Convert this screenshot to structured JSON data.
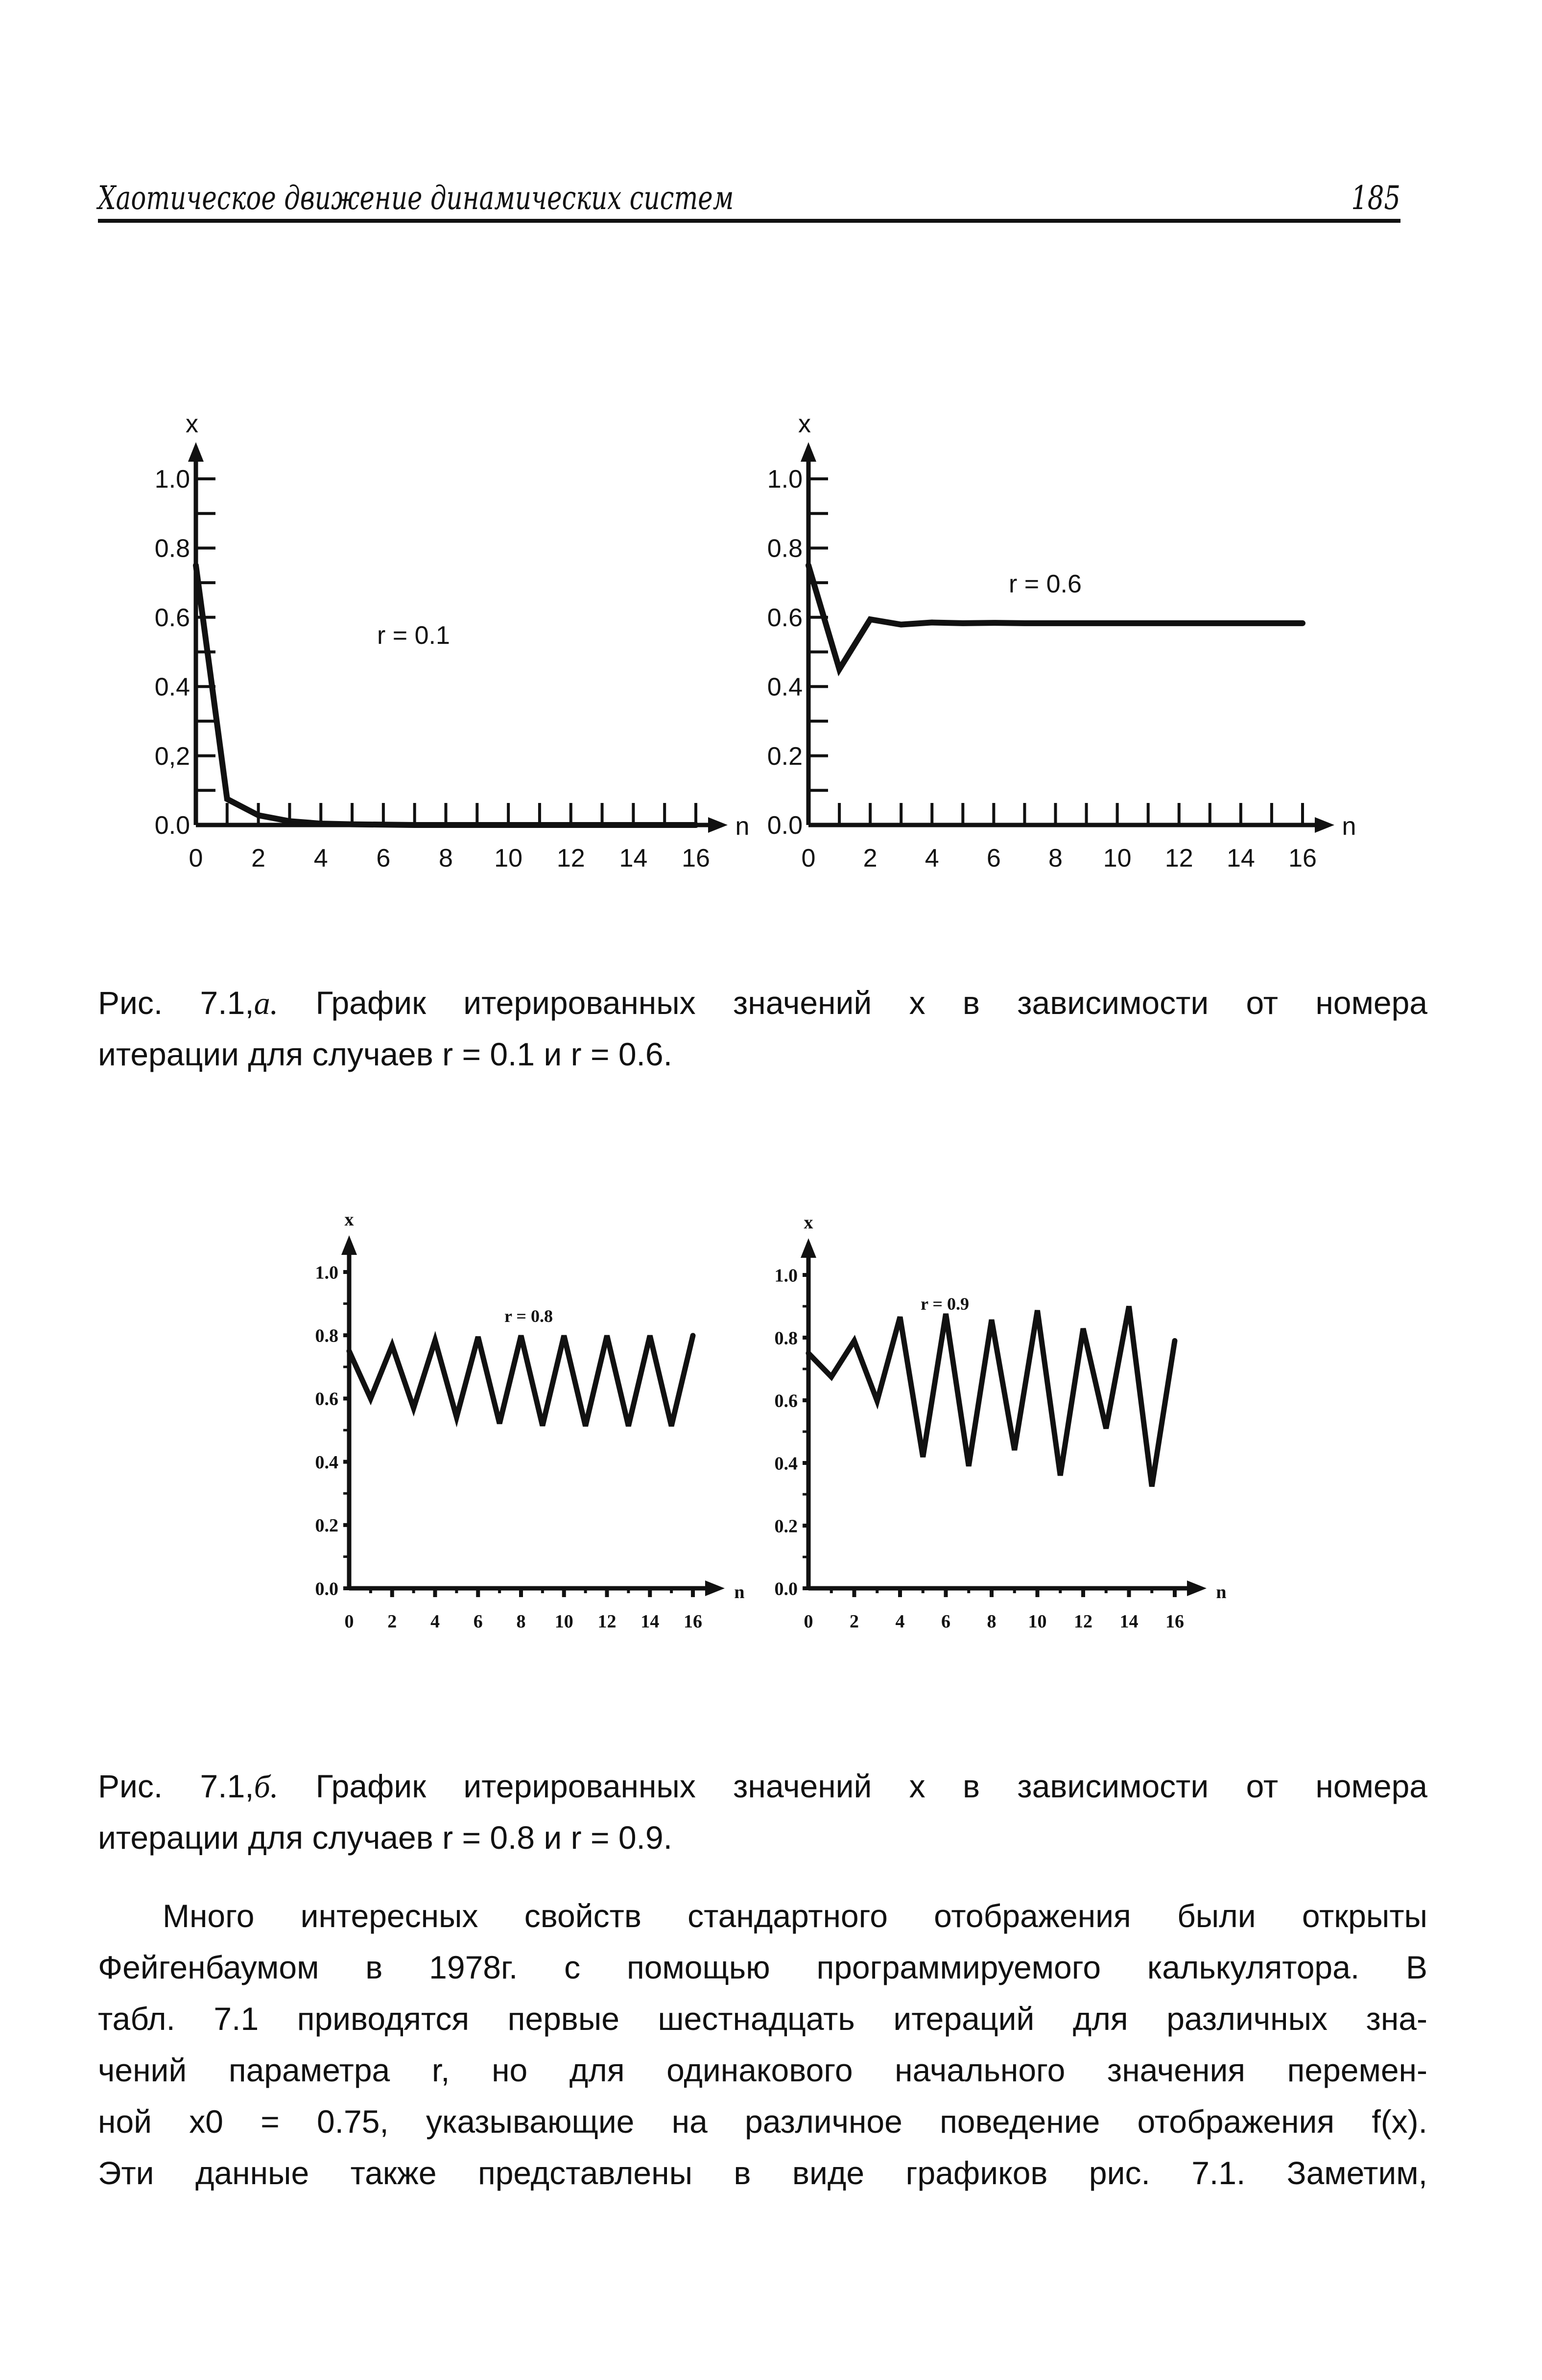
{
  "header": {
    "title": "Хаотическое движение динамических систем",
    "page_number": "185"
  },
  "figure_a_caption": {
    "label": "Рис. 7.1,",
    "label_letter": "а.",
    "line1_rest": "График итерированных значений x в зависимости от номера",
    "line2": "итерации для случаев r = 0.1 и r = 0.6."
  },
  "figure_b_caption": {
    "label": "Рис. 7.1,",
    "label_letter": "б.",
    "line1_rest": "График итерированных значений x в зависимости от номера",
    "line2": "итерации для случаев r = 0.8 и r = 0.9."
  },
  "paragraph": {
    "lines": [
      "Много интересных свойств стандартного отображения были открыты",
      "Фейгенбаумом в 1978г. с помощью программируемого калькулятора. В",
      "табл. 7.1 приводятся первые шестнадцать итераций для различных зна-",
      "чений параметра r, но для одинакового начального значения перемен-",
      "ной x0 = 0.75, указывающие на различное поведение отображения f(x).",
      "Эти данные также представлены в виде графиков рис. 7.1. Заметим,"
    ]
  },
  "chart_data": [
    {
      "type": "line",
      "xlabel": "n",
      "ylabel": "x",
      "annotation": "r = 0.1",
      "xlim": [
        0,
        16
      ],
      "ylim": [
        0,
        1.0
      ],
      "xticks": [
        "0",
        "2",
        "4",
        "6",
        "8",
        "10",
        "12",
        "14",
        "16"
      ],
      "yticks": [
        "1.0",
        "0.8",
        "0.6",
        "0.4",
        "0,2",
        "0.0"
      ],
      "x": [
        0,
        1,
        2,
        3,
        4,
        5,
        6,
        7,
        8,
        9,
        10,
        11,
        12,
        13,
        14,
        15,
        16
      ],
      "values": [
        0.75,
        0.075,
        0.028,
        0.011,
        0.004,
        0.002,
        0.001,
        0,
        0,
        0,
        0,
        0,
        0,
        0,
        0,
        0,
        0
      ],
      "grid": false
    },
    {
      "type": "line",
      "xlabel": "n",
      "ylabel": "x",
      "annotation": "r = 0.6",
      "xlim": [
        0,
        16
      ],
      "ylim": [
        0,
        1.0
      ],
      "xticks": [
        "0",
        "2",
        "4",
        "6",
        "8",
        "10",
        "12",
        "14",
        "16"
      ],
      "yticks": [
        "1.0",
        "0.8",
        "0.6",
        "0.4",
        "0.2",
        "0.0"
      ],
      "x": [
        0,
        1,
        2,
        3,
        4,
        5,
        6,
        7,
        8,
        9,
        10,
        11,
        12,
        13,
        14,
        15,
        16
      ],
      "values": [
        0.75,
        0.45,
        0.594,
        0.579,
        0.585,
        0.583,
        0.584,
        0.583,
        0.583,
        0.583,
        0.583,
        0.583,
        0.583,
        0.583,
        0.583,
        0.583,
        0.583
      ],
      "grid": false
    },
    {
      "type": "line",
      "xlabel": "n",
      "ylabel": "x",
      "annotation": "r = 0.8",
      "xlim": [
        0,
        16
      ],
      "ylim": [
        0,
        1.0
      ],
      "xticks": [
        "0",
        "2",
        "4",
        "6",
        "8",
        "10",
        "12",
        "14",
        "16"
      ],
      "yticks": [
        "1.0",
        "0.8",
        "0.6",
        "0.4",
        "0.2",
        "0.0"
      ],
      "x": [
        0,
        1,
        2,
        3,
        4,
        5,
        6,
        7,
        8,
        9,
        10,
        11,
        12,
        13,
        14,
        15,
        16
      ],
      "values": [
        0.75,
        0.6,
        0.768,
        0.57,
        0.784,
        0.541,
        0.795,
        0.521,
        0.799,
        0.514,
        0.799,
        0.513,
        0.799,
        0.513,
        0.799,
        0.513,
        0.799
      ],
      "grid": false
    },
    {
      "type": "line",
      "xlabel": "n",
      "ylabel": "x",
      "annotation": "r = 0.9",
      "xlim": [
        0,
        16
      ],
      "ylim": [
        0,
        1.0
      ],
      "xticks": [
        "0",
        "2",
        "4",
        "6",
        "8",
        "10",
        "12",
        "14",
        "16"
      ],
      "yticks": [
        "1.0",
        "0.8",
        "0.6",
        "0.4",
        "0.2",
        "0.0"
      ],
      "x": [
        0,
        1,
        2,
        3,
        4,
        5,
        6,
        7,
        8,
        9,
        10,
        11,
        12,
        13,
        14,
        15,
        16
      ],
      "values": [
        0.75,
        0.675,
        0.79,
        0.598,
        0.866,
        0.419,
        0.876,
        0.39,
        0.857,
        0.441,
        0.887,
        0.36,
        0.829,
        0.51,
        0.9,
        0.325,
        0.79
      ],
      "grid": false
    }
  ]
}
